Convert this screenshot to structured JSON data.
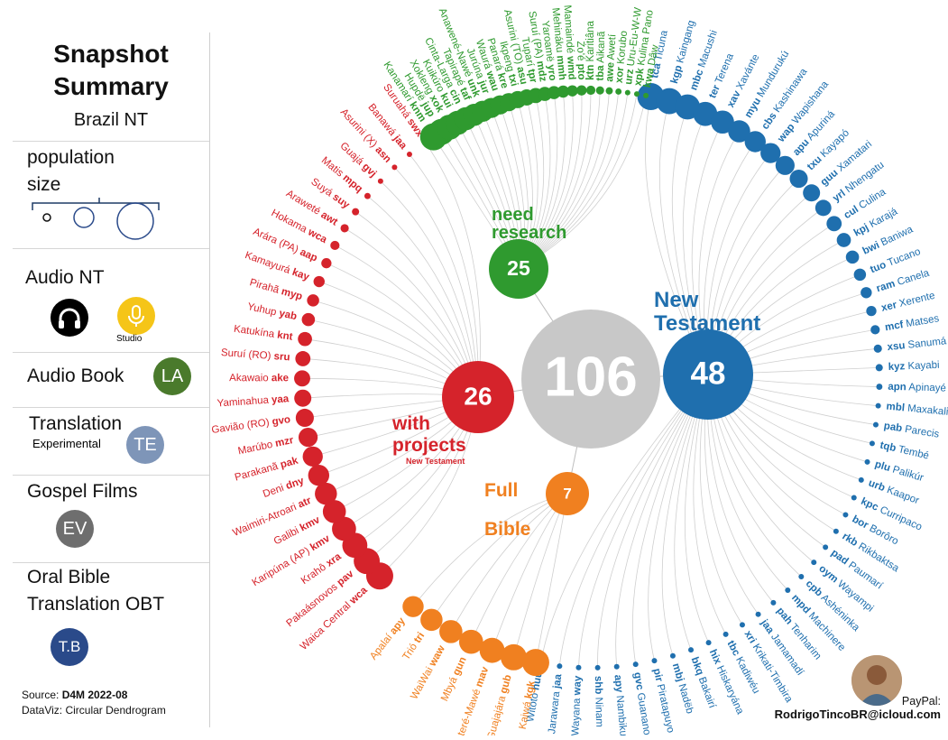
{
  "sidebar": {
    "title_line1": "Snapshot",
    "title_line2": "Summary",
    "subtitle": "Brazil NT",
    "population_label_1": "population",
    "population_label_2": "size",
    "audio_nt_label": "Audio NT",
    "studio_label": "Studio",
    "audio_book_label": "Audio Book",
    "audio_book_badge": "LA",
    "translation_label": "Translation",
    "experimental_label": "Experimental",
    "translation_badge": "TE",
    "gospel_films_label": "Gospel Films",
    "gospel_films_badge": "EV",
    "obt_label_1": "Oral Bible",
    "obt_label_2": "Translation OBT",
    "obt_badge": "T.B"
  },
  "footer": {
    "source_prefix": "Source: ",
    "source_value": "D4M 2022-08",
    "dataviz": "DataViz: Circular Dendrogram",
    "paypal_label": "PayPal:",
    "paypal_email": "RodrigoTincoBR@icloud.com"
  },
  "colors": {
    "nt": "#1f6fae",
    "research": "#2f9a2f",
    "projects": "#d5232b",
    "bible": "#f08020",
    "center": "#c8c8c8",
    "la": "#4a7a2c",
    "te": "#7e95b8",
    "ev": "#6e6e6e",
    "tb": "#2a4a8a",
    "studio": "#f5c518"
  },
  "chart_data": {
    "type": "circular-dendrogram",
    "root": {
      "label": "106",
      "value": 106
    },
    "groups": [
      {
        "id": "nt",
        "name": "New Testament",
        "count": 48,
        "label": "48",
        "leaves": [
          {
            "code": "tca",
            "name": "Ticuna"
          },
          {
            "code": "kgp",
            "name": "Kaingang"
          },
          {
            "code": "mbc",
            "name": "Macushi"
          },
          {
            "code": "ter",
            "name": "Terena"
          },
          {
            "code": "xav",
            "name": "Xavánte"
          },
          {
            "code": "myu",
            "name": "Mundurukú"
          },
          {
            "code": "cbs",
            "name": "Kashinawa"
          },
          {
            "code": "wap",
            "name": "Wapishana"
          },
          {
            "code": "apu",
            "name": "Apuriná"
          },
          {
            "code": "txu",
            "name": "Kayapó"
          },
          {
            "code": "guu",
            "name": "Xamatari"
          },
          {
            "code": "yrl",
            "name": "Nhengatu"
          },
          {
            "code": "cul",
            "name": "Culina"
          },
          {
            "code": "kpj",
            "name": "Karajá"
          },
          {
            "code": "bwi",
            "name": "Baniwa"
          },
          {
            "code": "tuo",
            "name": "Tucano"
          },
          {
            "code": "ram",
            "name": "Canela"
          },
          {
            "code": "xer",
            "name": "Xerente"
          },
          {
            "code": "mcf",
            "name": "Matses"
          },
          {
            "code": "xsu",
            "name": "Sanumá"
          },
          {
            "code": "kyz",
            "name": "Kayabi"
          },
          {
            "code": "apn",
            "name": "Apinayé"
          },
          {
            "code": "mbl",
            "name": "Maxakali"
          },
          {
            "code": "pab",
            "name": "Parecis"
          },
          {
            "code": "tqb",
            "name": "Tembé"
          },
          {
            "code": "plu",
            "name": "Palikúr"
          },
          {
            "code": "urb",
            "name": "Kaapor"
          },
          {
            "code": "kpc",
            "name": "Curripaco"
          },
          {
            "code": "bor",
            "name": "Borôro"
          },
          {
            "code": "rkb",
            "name": "Rikbaktsa"
          },
          {
            "code": "pad",
            "name": "Paumarí"
          },
          {
            "code": "oym",
            "name": "Wayampi"
          },
          {
            "code": "cpb",
            "name": "Ashéninka"
          },
          {
            "code": "mpd",
            "name": "Machinere"
          },
          {
            "code": "pah",
            "name": "Tenharim"
          },
          {
            "code": "jaa",
            "name": "Jamamadí"
          },
          {
            "code": "xri",
            "name": "Krikati-Timbira"
          },
          {
            "code": "tbc",
            "name": "Kadiwéu"
          },
          {
            "code": "hix",
            "name": "Hiskaryána"
          },
          {
            "code": "bkq",
            "name": "Bakairí"
          },
          {
            "code": "mbj",
            "name": "Nadëb"
          },
          {
            "code": "pir",
            "name": "Piratapuyo"
          },
          {
            "code": "gvc",
            "name": "Guanano"
          },
          {
            "code": "apy",
            "name": "Nambikuára"
          },
          {
            "code": "shb",
            "name": "Ninam"
          },
          {
            "code": "way",
            "name": "Wayana"
          },
          {
            "code": "jaa",
            "name": "Jarawara"
          },
          {
            "code": "huu",
            "name": "Witoto"
          }
        ]
      },
      {
        "id": "bible",
        "name_line1": "Full",
        "name_line2": "Bible",
        "count": 7,
        "label": "7",
        "leaves": [
          {
            "code": "kgk",
            "name": "Kaiwá"
          },
          {
            "code": "gub",
            "name": "Guajajára"
          },
          {
            "code": "mav",
            "name": "Sateré-Mawé"
          },
          {
            "code": "gun",
            "name": "Mbyá"
          },
          {
            "code": "waw",
            "name": "WaiWai"
          },
          {
            "code": "tri",
            "name": "Trió"
          },
          {
            "code": "apy",
            "name": "Apalaí"
          }
        ]
      },
      {
        "id": "projects",
        "name_line1": "with",
        "name_line2": "projects",
        "sub": "New Testament",
        "count": 26,
        "label": "26",
        "leaves": [
          {
            "code": "wca",
            "name": "Waica Central"
          },
          {
            "code": "pav",
            "name": "Pakaásnovos"
          },
          {
            "code": "xra",
            "name": "Krahô"
          },
          {
            "code": "kmv",
            "name": "Karipúna (AP)"
          },
          {
            "code": "kmv",
            "name": "Galibi"
          },
          {
            "code": "atr",
            "name": "Waimiri-Atroari"
          },
          {
            "code": "dny",
            "name": "Deni"
          },
          {
            "code": "pak",
            "name": "Parakanã"
          },
          {
            "code": "mzr",
            "name": "Marúbo"
          },
          {
            "code": "gvo",
            "name": "Gavião (RO)"
          },
          {
            "code": "yaa",
            "name": "Yaminahua"
          },
          {
            "code": "ake",
            "name": "Akawaio"
          },
          {
            "code": "sru",
            "name": "Suruí (RO)"
          },
          {
            "code": "knt",
            "name": "Katukína"
          },
          {
            "code": "yab",
            "name": "Yuhup"
          },
          {
            "code": "myp",
            "name": "Pirahã"
          },
          {
            "code": "kay",
            "name": "Kamayurá"
          },
          {
            "code": "aap",
            "name": "Arára (PA)"
          },
          {
            "code": "wca",
            "name": "Hokama"
          },
          {
            "code": "awt",
            "name": "Araweté"
          },
          {
            "code": "suy",
            "name": "Suyá"
          },
          {
            "code": "mpq",
            "name": "Matis"
          },
          {
            "code": "gvj",
            "name": "Guajá"
          },
          {
            "code": "asn",
            "name": "Asurini (X)"
          },
          {
            "code": "jaa",
            "name": "Banawá"
          },
          {
            "code": "swx",
            "name": "Suruahá"
          }
        ]
      },
      {
        "id": "research",
        "name_line1": "need",
        "name_line2": "research",
        "count": 25,
        "label": "25",
        "leaves": [
          {
            "code": "knm",
            "name": "Kanamarí"
          },
          {
            "code": "jup",
            "name": "Hupdë"
          },
          {
            "code": "xok",
            "name": "Xokleng"
          },
          {
            "code": "kui",
            "name": "Kuikúro"
          },
          {
            "code": "cin",
            "name": "Cinta-Larga"
          },
          {
            "code": "taf",
            "name": "Tapirapé"
          },
          {
            "code": "unk",
            "name": "Anawené-Nawé"
          },
          {
            "code": "jur",
            "name": "Jurúna"
          },
          {
            "code": "wau",
            "name": "Waurá"
          },
          {
            "code": "kre",
            "name": "Panará"
          },
          {
            "code": "txi",
            "name": "Ikpeng"
          },
          {
            "code": "asu",
            "name": "Asurini (TO)"
          },
          {
            "code": "tpr",
            "name": "Tuparí"
          },
          {
            "code": "mdz",
            "name": "Suruí (PA)"
          },
          {
            "code": "yro",
            "name": "Yaroamë"
          },
          {
            "code": "mmh",
            "name": "Mehináku"
          },
          {
            "code": "wmd",
            "name": "Mamaindé"
          },
          {
            "code": "pto",
            "name": "Zo'é"
          },
          {
            "code": "ktn",
            "name": "Karitiâna"
          },
          {
            "code": "tba",
            "name": "Aikanã"
          },
          {
            "code": "awe",
            "name": "Awetí"
          },
          {
            "code": "xor",
            "name": "Korubo"
          },
          {
            "code": "urz",
            "name": "Uru-Eu-W-W"
          },
          {
            "code": "xpk",
            "name": "Kulina Pano"
          },
          {
            "code": "kwa",
            "name": "Dâw"
          }
        ]
      }
    ]
  }
}
